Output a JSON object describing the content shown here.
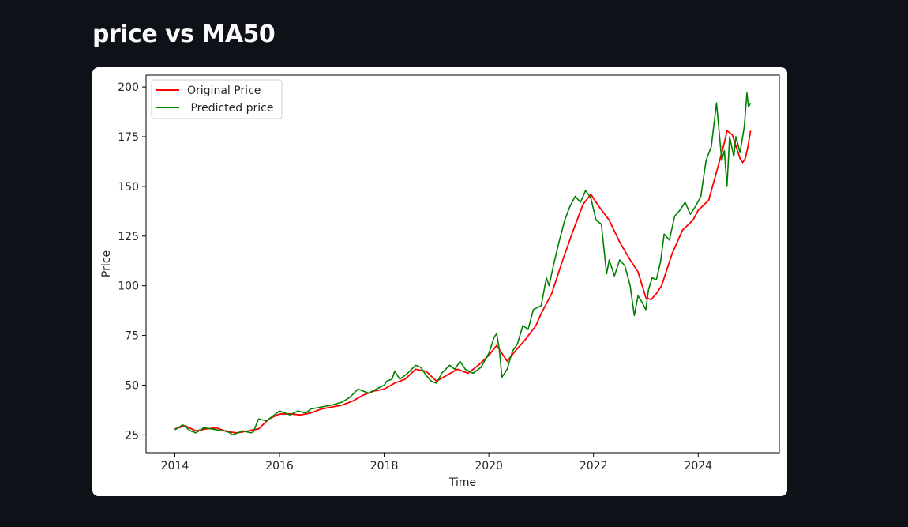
{
  "page": {
    "title": "price vs MA50"
  },
  "chart_data": {
    "type": "line",
    "title": "",
    "xlabel": "Time",
    "ylabel": "Price",
    "xlim": [
      2013.45,
      2025.55
    ],
    "ylim": [
      16,
      206
    ],
    "x_ticks": [
      2014,
      2016,
      2018,
      2020,
      2022,
      2024
    ],
    "x_tick_labels": [
      "2014",
      "2016",
      "2018",
      "2020",
      "2022",
      "2024"
    ],
    "y_ticks": [
      25,
      50,
      75,
      100,
      125,
      150,
      175,
      200
    ],
    "y_tick_labels": [
      "25",
      "50",
      "75",
      "100",
      "125",
      "150",
      "175",
      "200"
    ],
    "grid": false,
    "legend": {
      "placement": "upper-left",
      "entries": [
        "Original Price",
        " Predicted price"
      ]
    },
    "series": [
      {
        "name": "Original Price",
        "color": "#ff0000",
        "x": [
          2014.0,
          2014.2,
          2014.4,
          2014.6,
          2014.8,
          2015.0,
          2015.2,
          2015.4,
          2015.6,
          2015.8,
          2016.0,
          2016.2,
          2016.4,
          2016.6,
          2016.8,
          2017.0,
          2017.2,
          2017.4,
          2017.6,
          2017.8,
          2018.0,
          2018.2,
          2018.4,
          2018.6,
          2018.8,
          2019.0,
          2019.2,
          2019.4,
          2019.6,
          2019.8,
          2020.0,
          2020.15,
          2020.25,
          2020.35,
          2020.5,
          2020.7,
          2020.9,
          2021.0,
          2021.2,
          2021.4,
          2021.6,
          2021.8,
          2021.95,
          2022.1,
          2022.3,
          2022.5,
          2022.7,
          2022.85,
          2023.0,
          2023.1,
          2023.2,
          2023.3,
          2023.5,
          2023.7,
          2023.9,
          2024.0,
          2024.2,
          2024.4,
          2024.5,
          2024.55,
          2024.65,
          2024.75,
          2024.8,
          2024.85,
          2024.9,
          2024.95,
          2025.0
        ],
        "y": [
          28,
          29.5,
          27,
          28,
          28.5,
          26.5,
          26,
          27,
          28,
          33,
          35.5,
          35.5,
          35,
          36,
          38,
          39,
          40,
          42,
          45,
          47,
          48,
          51,
          53,
          58,
          57,
          52,
          55,
          58,
          56,
          60,
          65,
          70,
          66,
          62,
          67,
          73,
          80,
          86,
          96,
          112,
          127,
          141,
          146,
          140,
          133,
          122,
          113,
          107,
          94,
          93,
          96,
          100,
          116,
          128,
          133,
          138,
          143,
          162,
          172,
          178,
          176,
          168,
          164,
          162,
          164,
          170,
          178
        ]
      },
      {
        "name": " Predicted price",
        "color": "#008000",
        "x": [
          2014.0,
          2014.15,
          2014.3,
          2014.4,
          2014.55,
          2014.7,
          2014.9,
          2015.0,
          2015.1,
          2015.2,
          2015.3,
          2015.45,
          2015.5,
          2015.6,
          2015.75,
          2015.9,
          2016.0,
          2016.1,
          2016.2,
          2016.35,
          2016.5,
          2016.6,
          2016.8,
          2017.0,
          2017.2,
          2017.35,
          2017.5,
          2017.7,
          2017.85,
          2018.0,
          2018.05,
          2018.15,
          2018.2,
          2018.3,
          2018.45,
          2018.6,
          2018.7,
          2018.8,
          2018.9,
          2019.0,
          2019.1,
          2019.25,
          2019.35,
          2019.45,
          2019.55,
          2019.7,
          2019.85,
          2020.0,
          2020.1,
          2020.15,
          2020.2,
          2020.25,
          2020.35,
          2020.45,
          2020.55,
          2020.65,
          2020.75,
          2020.85,
          2021.0,
          2021.1,
          2021.15,
          2021.25,
          2021.35,
          2021.45,
          2021.55,
          2021.65,
          2021.75,
          2021.85,
          2021.95,
          2022.05,
          2022.15,
          2022.25,
          2022.3,
          2022.4,
          2022.5,
          2022.6,
          2022.7,
          2022.78,
          2022.85,
          2022.92,
          2023.0,
          2023.05,
          2023.12,
          2023.2,
          2023.28,
          2023.35,
          2023.45,
          2023.55,
          2023.65,
          2023.75,
          2023.85,
          2023.95,
          2024.05,
          2024.15,
          2024.25,
          2024.35,
          2024.45,
          2024.5,
          2024.55,
          2024.6,
          2024.68,
          2024.72,
          2024.8,
          2024.88,
          2024.93,
          2024.96,
          2025.0
        ],
        "y": [
          27.5,
          30,
          27,
          26,
          28.5,
          28,
          27,
          27,
          25,
          26,
          27,
          26,
          26.5,
          33,
          32,
          35,
          37,
          36,
          35,
          37,
          36,
          38,
          39,
          40,
          41.5,
          44,
          48,
          46,
          48,
          50,
          52,
          53,
          57,
          53,
          56,
          60,
          59,
          55,
          52,
          51,
          56,
          60,
          58,
          62,
          58,
          56,
          59,
          66,
          74,
          76,
          68,
          54,
          58,
          67,
          71,
          80,
          78,
          88,
          90,
          104,
          100,
          112,
          123,
          133,
          140,
          145,
          142,
          148,
          144,
          133,
          131,
          106,
          113,
          105,
          113,
          110,
          100,
          85,
          95,
          92,
          88,
          98,
          104,
          103,
          112,
          126,
          123,
          135,
          138,
          142,
          136,
          140,
          145,
          163,
          170,
          192,
          163,
          168,
          150,
          175,
          165,
          175,
          167,
          180,
          197,
          190,
          192
        ]
      }
    ]
  }
}
